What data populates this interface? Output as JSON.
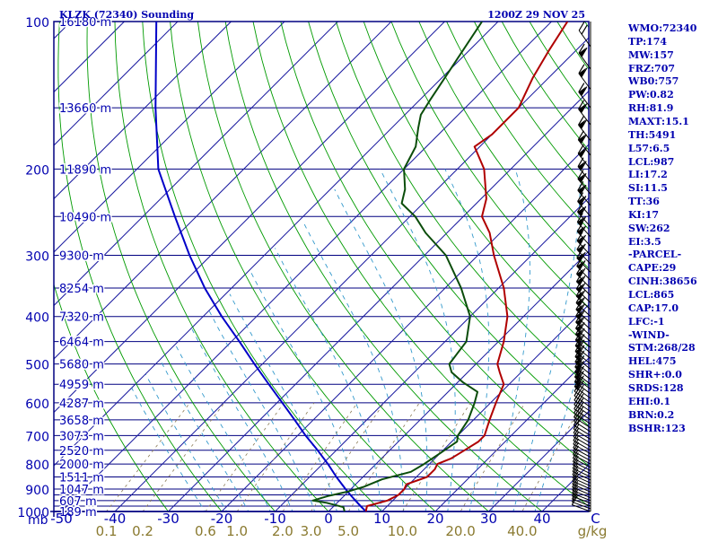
{
  "header": {
    "station": "KLZK (72340) Sounding",
    "time": "1200Z 29 NOV 25"
  },
  "chart_data": {
    "type": "skew-t",
    "pressure_axis": {
      "labels": [
        "100",
        "200",
        "300",
        "400",
        "500",
        "600",
        "700",
        "800",
        "900",
        "1000"
      ],
      "unit_label": "mb"
    },
    "pressure_levels_drawn": [
      100,
      150,
      200,
      250,
      300,
      350,
      400,
      450,
      500,
      550,
      600,
      650,
      700,
      750,
      800,
      850,
      900,
      925,
      950,
      975,
      1000
    ],
    "height_labels": [
      {
        "p": 100,
        "t": "16180 m"
      },
      {
        "p": 150,
        "t": "13660 m"
      },
      {
        "p": 200,
        "t": "11890 m"
      },
      {
        "p": 250,
        "t": "10490 m"
      },
      {
        "p": 300,
        "t": "9300 m"
      },
      {
        "p": 350,
        "t": "8254 m"
      },
      {
        "p": 400,
        "t": "7320 m"
      },
      {
        "p": 450,
        "t": "6464 m"
      },
      {
        "p": 500,
        "t": "5680 m"
      },
      {
        "p": 550,
        "t": "4959 m"
      },
      {
        "p": 600,
        "t": "4287 m"
      },
      {
        "p": 650,
        "t": "3658 m"
      },
      {
        "p": 700,
        "t": "3073 m"
      },
      {
        "p": 750,
        "t": "2520 m"
      },
      {
        "p": 800,
        "t": "2000 m"
      },
      {
        "p": 850,
        "t": "1511 m"
      },
      {
        "p": 900,
        "t": "1047 m"
      },
      {
        "p": 950,
        "t": "607 m"
      },
      {
        "p": 1000,
        "t": "189 m"
      }
    ],
    "temperature_axis": {
      "values": [
        -50,
        -40,
        -30,
        -20,
        -10,
        0,
        10,
        20,
        30,
        40,
        50
      ],
      "labels": [
        "-50",
        "-40",
        "-30",
        "-20",
        "-10",
        "0",
        "10",
        "20",
        "30",
        "40",
        "C"
      ]
    },
    "mixing_ratio_axis": {
      "values": [
        0.1,
        0.2,
        0.6,
        1.0,
        2.0,
        3.0,
        5.0,
        10.0,
        20.0,
        40.0
      ],
      "labels": [
        "0.1",
        "0.2",
        "0.6",
        "1.0",
        "2.0",
        "3.0",
        "5.0",
        "10.0",
        "20.0",
        "40.0"
      ],
      "unit_label": "g/kg"
    },
    "temperature_profile": [
      [
        1000,
        7
      ],
      [
        975,
        6.2
      ],
      [
        950,
        9
      ],
      [
        925,
        10
      ],
      [
        900,
        10
      ],
      [
        880,
        9.5
      ],
      [
        850,
        12
      ],
      [
        820,
        12
      ],
      [
        800,
        11.5
      ],
      [
        780,
        13
      ],
      [
        750,
        14
      ],
      [
        720,
        15
      ],
      [
        700,
        15
      ],
      [
        650,
        13
      ],
      [
        600,
        11
      ],
      [
        550,
        9
      ],
      [
        520,
        6
      ],
      [
        500,
        4
      ],
      [
        450,
        1
      ],
      [
        400,
        -3
      ],
      [
        350,
        -9
      ],
      [
        300,
        -17
      ],
      [
        270,
        -22
      ],
      [
        250,
        -26.5
      ],
      [
        230,
        -29
      ],
      [
        200,
        -35
      ],
      [
        180,
        -41
      ],
      [
        170,
        -40
      ],
      [
        150,
        -40
      ],
      [
        130,
        -43
      ],
      [
        115,
        -45
      ],
      [
        100,
        -47
      ]
    ],
    "dewpoint_profile": [
      [
        1000,
        3
      ],
      [
        980,
        2
      ],
      [
        960,
        -2
      ],
      [
        950,
        -5
      ],
      [
        930,
        -3
      ],
      [
        910,
        0
      ],
      [
        890,
        2
      ],
      [
        860,
        4
      ],
      [
        830,
        8
      ],
      [
        800,
        9
      ],
      [
        760,
        10
      ],
      [
        720,
        11
      ],
      [
        700,
        10
      ],
      [
        650,
        9
      ],
      [
        600,
        7
      ],
      [
        570,
        5.5
      ],
      [
        545,
        1
      ],
      [
        520,
        -3
      ],
      [
        500,
        -5
      ],
      [
        450,
        -6
      ],
      [
        400,
        -10
      ],
      [
        350,
        -17
      ],
      [
        300,
        -26
      ],
      [
        270,
        -34
      ],
      [
        250,
        -39
      ],
      [
        235,
        -44
      ],
      [
        220,
        -46
      ],
      [
        200,
        -50
      ],
      [
        180,
        -52
      ],
      [
        165,
        -55
      ],
      [
        155,
        -57
      ],
      [
        145,
        -58
      ],
      [
        125,
        -60
      ],
      [
        100,
        -63
      ]
    ],
    "parcel_profile": [
      [
        1000,
        7
      ],
      [
        975,
        5
      ],
      [
        950,
        3
      ],
      [
        925,
        1
      ],
      [
        900,
        -1
      ],
      [
        850,
        -5
      ],
      [
        800,
        -9
      ],
      [
        750,
        -13.5
      ],
      [
        700,
        -18.5
      ],
      [
        650,
        -23.5
      ],
      [
        600,
        -29
      ],
      [
        550,
        -35
      ],
      [
        500,
        -41.5
      ],
      [
        450,
        -48.5
      ],
      [
        400,
        -56.5
      ],
      [
        350,
        -65
      ],
      [
        300,
        -74
      ],
      [
        250,
        -84
      ],
      [
        200,
        -96
      ],
      [
        150,
        -108
      ],
      [
        100,
        -124
      ]
    ]
  },
  "indices": [
    "WMO:72340",
    "TP:174",
    "MW:157",
    "FRZ:707",
    "WB0:757",
    "PW:0.82",
    "RH:81.9",
    "MAXT:15.1",
    "TH:5491",
    "L57:6.5",
    "LCL:987",
    "LI:17.2",
    "SI:11.5",
    "TT:36",
    "KI:17",
    "SW:262",
    "EI:3.5",
    "-PARCEL-",
    "CAPE:29",
    "CINH:38656",
    "LCL:865",
    "CAP:17.0",
    "LFC:-1",
    "-WIND-",
    "STM:268/28",
    "HEL:475",
    "SHR+:0.0",
    "SRDS:128",
    "EHI:0.1",
    "BRN:0.2",
    "BSHR:123"
  ],
  "colors": {
    "frame": "#000080",
    "isobar": "#000080",
    "isotherm": "#1a1aa0",
    "dry_adiabat": "#009a00",
    "moist_adiabat": "#3399cc",
    "mixing_ratio": "#8a7a55",
    "temperature": "#b00000",
    "dewpoint": "#0b4d0b",
    "parcel": "#0000c8",
    "mixing_label": "#8a7a30",
    "text": "#0000b0"
  }
}
